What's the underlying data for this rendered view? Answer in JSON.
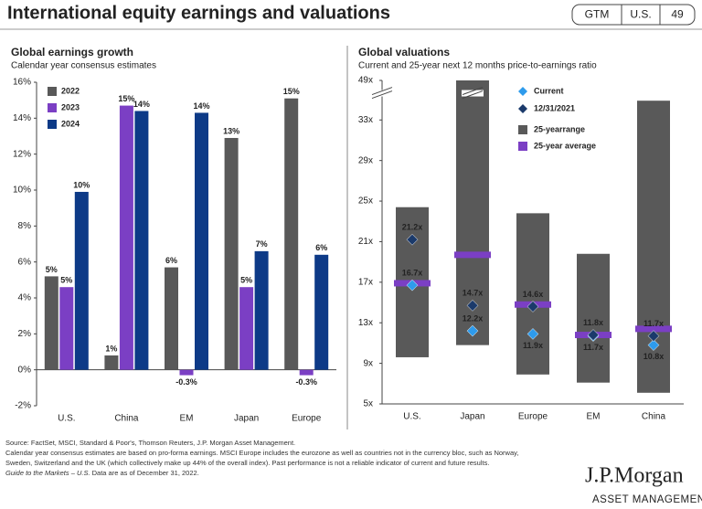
{
  "header": {
    "title": "International equity earnings and valuations",
    "tags": [
      "GTM",
      "U.S.",
      "49"
    ]
  },
  "chart_data": [
    {
      "type": "bar",
      "title": "Global earnings growth",
      "subtitle": "Calendar year consensus estimates",
      "categories": [
        "U.S.",
        "China",
        "EM",
        "Japan",
        "Europe"
      ],
      "series": [
        {
          "name": "2022",
          "color": "#595959",
          "values": [
            5.2,
            0.8,
            5.7,
            12.9,
            15.1
          ],
          "value_labels": [
            "5%",
            "1%",
            "6%",
            "13%",
            "15%"
          ]
        },
        {
          "name": "2023",
          "color": "#7b3fc4",
          "values": [
            4.6,
            14.7,
            -0.3,
            4.6,
            -0.3
          ],
          "value_labels": [
            "5%",
            "15%",
            "-0.3%",
            "5%",
            "-0.3%"
          ]
        },
        {
          "name": "2024",
          "color": "#0d3a87",
          "values": [
            9.9,
            14.4,
            14.3,
            6.6,
            6.4
          ],
          "value_labels": [
            "10%",
            "14%",
            "14%",
            "7%",
            "6%"
          ]
        }
      ],
      "ylim": [
        -2,
        16
      ],
      "yticks": [
        {
          "value": -2,
          "label": "-2%"
        },
        {
          "value": 0,
          "label": "0%"
        },
        {
          "value": 2,
          "label": "2%"
        },
        {
          "value": 4,
          "label": "4%"
        },
        {
          "value": 6,
          "label": "6%"
        },
        {
          "value": 8,
          "label": "8%"
        },
        {
          "value": 10,
          "label": "10%"
        },
        {
          "value": 12,
          "label": "12%"
        },
        {
          "value": 14,
          "label": "14%"
        },
        {
          "value": 16,
          "label": "16%"
        }
      ],
      "grid": false,
      "legend": "upper left"
    },
    {
      "type": "range",
      "title": "Global valuations",
      "subtitle": "Current and 25-year next 12 months price-to-earnings ratio",
      "categories": [
        "U.S.",
        "Japan",
        "Europe",
        "EM",
        "China"
      ],
      "series": [
        {
          "name": "Current",
          "color": "#2e9bec",
          "marker": "diamond",
          "values": [
            16.7,
            12.2,
            11.9,
            11.7,
            10.8
          ],
          "value_labels": [
            "16.7x",
            "12.2x",
            "11.9x",
            "11.7x",
            "10.8x"
          ]
        },
        {
          "name": "12/31/2021",
          "color": "#1b3a6b",
          "marker": "diamond",
          "values": [
            21.2,
            14.7,
            14.6,
            11.8,
            11.7
          ],
          "value_labels": [
            "21.2x",
            "14.7x",
            "14.6x",
            "11.8x",
            "11.7x"
          ]
        },
        {
          "name": "25-yearrange",
          "color": "#595959",
          "low": [
            9.6,
            10.8,
            7.9,
            7.1,
            6.1
          ],
          "high": [
            24.4,
            49,
            23.8,
            19.8,
            34.9
          ]
        },
        {
          "name": "25-year average",
          "color": "#7b3fc4",
          "marker": "line",
          "values": [
            16.9,
            19.7,
            14.8,
            11.8,
            12.4
          ]
        }
      ],
      "ylim": [
        5,
        49
      ],
      "axis_break": [
        35.5,
        47.6
      ],
      "yticks": [
        {
          "value": 5,
          "label": "5x"
        },
        {
          "value": 9,
          "label": "9x"
        },
        {
          "value": 13,
          "label": "13x"
        },
        {
          "value": 17,
          "label": "17x"
        },
        {
          "value": 21,
          "label": "21x"
        },
        {
          "value": 25,
          "label": "25x"
        },
        {
          "value": 29,
          "label": "29x"
        },
        {
          "value": 33,
          "label": "33x"
        },
        {
          "value": 49,
          "label": "49x"
        }
      ],
      "grid": false,
      "legend": "upper center"
    }
  ],
  "footnotes": [
    "Source: FactSet, MSCI, Standard & Poor's, Thomson Reuters, J.P. Morgan Asset Management.",
    "Calendar year consensus estimates are based on pro-forma earnings. MSCI Europe includes the eurozone as well as countries not in the currency bloc, such as Norway,",
    "Sweden, Switzerland and the UK (which collectively make up 44% of the overall index). Past performance is not a reliable indicator of current and future results."
  ],
  "guide": {
    "title": "Guide to the Markets – U.S.",
    "date": " Data are as of December 31, 2022."
  },
  "logo": {
    "name": "J.P.Morgan",
    "subtitle": "ASSET MANAGEMENT"
  }
}
